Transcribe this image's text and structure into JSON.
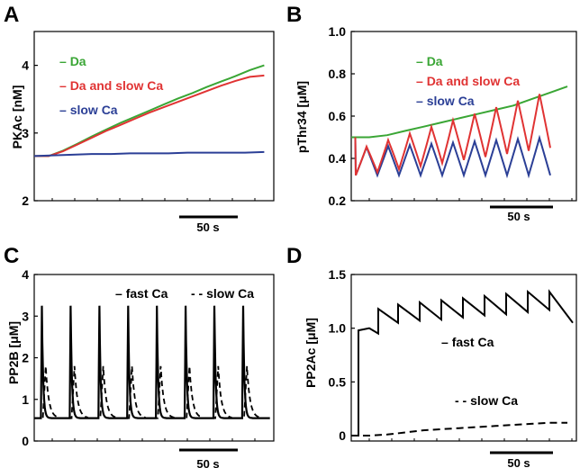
{
  "chart_data": [
    {
      "panel": "A",
      "type": "line",
      "ylabel": "PKAc [nM]",
      "ylim": [
        2,
        4.5
      ],
      "yticks": [
        "2",
        "3",
        "4"
      ],
      "xlim": [
        0,
        250
      ],
      "scale_bar_label": "50 s",
      "series": [
        {
          "name": "Da",
          "color": "#3aa635",
          "x": [
            0,
            15,
            30,
            45,
            60,
            75,
            90,
            105,
            120,
            135,
            150,
            165,
            180,
            195,
            210,
            225,
            240
          ],
          "y": [
            2.66,
            2.66,
            2.74,
            2.84,
            2.95,
            3.05,
            3.15,
            3.24,
            3.33,
            3.42,
            3.51,
            3.59,
            3.68,
            3.76,
            3.84,
            3.93,
            4.0
          ]
        },
        {
          "name": "Da and slow Ca",
          "color": "#e03333",
          "x": [
            0,
            15,
            30,
            45,
            60,
            75,
            90,
            105,
            120,
            135,
            150,
            165,
            180,
            195,
            210,
            225,
            240
          ],
          "y": [
            2.66,
            2.66,
            2.73,
            2.83,
            2.93,
            3.03,
            3.12,
            3.21,
            3.3,
            3.38,
            3.46,
            3.54,
            3.62,
            3.7,
            3.77,
            3.83,
            3.85
          ]
        },
        {
          "name": "slow Ca",
          "color": "#2b3f96",
          "x": [
            0,
            20,
            40,
            60,
            80,
            100,
            120,
            140,
            160,
            180,
            200,
            220,
            240
          ],
          "y": [
            2.66,
            2.67,
            2.68,
            2.69,
            2.69,
            2.7,
            2.7,
            2.7,
            2.71,
            2.71,
            2.71,
            2.71,
            2.72
          ]
        }
      ]
    },
    {
      "panel": "B",
      "type": "line",
      "ylabel": "pThr34 [μM]",
      "ylim": [
        0.2,
        1.0
      ],
      "yticks": [
        "0.2",
        "0.4",
        "0.6",
        "0.8",
        "1.0"
      ],
      "xlim": [
        0,
        250
      ],
      "scale_bar_label": "50 s",
      "series": [
        {
          "name": "Da",
          "color": "#3aa635",
          "x": [
            0,
            20,
            40,
            60,
            80,
            100,
            120,
            140,
            160,
            180,
            200,
            220,
            240
          ],
          "y": [
            0.5,
            0.5,
            0.51,
            0.53,
            0.55,
            0.57,
            0.59,
            0.61,
            0.63,
            0.65,
            0.68,
            0.71,
            0.74
          ]
        },
        {
          "name": "Da and slow Ca",
          "color": "#e03333",
          "x": [],
          "y": []
        },
        {
          "name": "slow Ca",
          "color": "#2b3f96",
          "x": [],
          "y": []
        }
      ],
      "oscillation": {
        "start": 5,
        "period": 24,
        "cycles": 9,
        "red_peak_start": 0.44,
        "red_peak_end": 0.72,
        "red_trough_start": 0.32,
        "red_trough_end": 0.45,
        "blue_peak": 0.45,
        "blue_peak_end": 0.5,
        "blue_trough": 0.32
      }
    },
    {
      "panel": "C",
      "type": "line",
      "ylabel": "PP2B [μM]",
      "ylim": [
        0,
        4
      ],
      "yticks": [
        "0",
        "1",
        "2",
        "3",
        "4"
      ],
      "xlim": [
        0,
        250
      ],
      "scale_bar_label": "50 s",
      "series": [
        {
          "name": "fast Ca",
          "color": "#000000",
          "dash": "solid",
          "baseline": 0.55,
          "peak": 3.25,
          "period": 30,
          "first_peak": 8,
          "count": 8
        },
        {
          "name": "slow Ca",
          "color": "#000000",
          "dash": "dashed",
          "baseline": 0.55,
          "peak": 1.8,
          "period": 30,
          "first_peak": 12,
          "count": 8
        }
      ]
    },
    {
      "panel": "D",
      "type": "line",
      "ylabel": "PP2Ac [μM]",
      "ylim": [
        -0.05,
        1.5
      ],
      "yticks": [
        "0",
        "0.5",
        "1.0",
        "1.5"
      ],
      "xlim": [
        0,
        250
      ],
      "scale_bar_label": "50 s",
      "series": [
        {
          "name": "fast Ca",
          "color": "#000000",
          "dash": "solid",
          "x": [
            0,
            8,
            8,
            20,
            30,
            30,
            52,
            52,
            76,
            76,
            100,
            100,
            124,
            124,
            148,
            148,
            172,
            172,
            196,
            196,
            220,
            220,
            246
          ],
          "y": [
            0,
            0,
            0.98,
            1.0,
            0.95,
            1.18,
            1.05,
            1.22,
            1.07,
            1.24,
            1.08,
            1.26,
            1.1,
            1.28,
            1.12,
            1.3,
            1.13,
            1.32,
            1.15,
            1.34,
            1.17,
            1.34,
            1.05
          ]
        },
        {
          "name": "slow Ca",
          "color": "#000000",
          "dash": "dashed",
          "x": [
            0,
            20,
            40,
            60,
            80,
            100,
            120,
            140,
            160,
            180,
            200,
            220,
            240
          ],
          "y": [
            0.0,
            0.0,
            0.01,
            0.03,
            0.05,
            0.06,
            0.07,
            0.08,
            0.09,
            0.1,
            0.11,
            0.12,
            0.12
          ]
        }
      ]
    }
  ],
  "panels": {
    "A": {
      "letter": "A",
      "legend": [
        "Da",
        "Da and slow Ca",
        "slow Ca"
      ]
    },
    "B": {
      "letter": "B",
      "legend": [
        "Da",
        "Da and slow Ca",
        "slow Ca"
      ]
    },
    "C": {
      "letter": "C",
      "legend_fast": "fast Ca",
      "legend_slow": "slow Ca"
    },
    "D": {
      "letter": "D",
      "legend_fast": "fast Ca",
      "legend_slow": "slow Ca"
    }
  }
}
